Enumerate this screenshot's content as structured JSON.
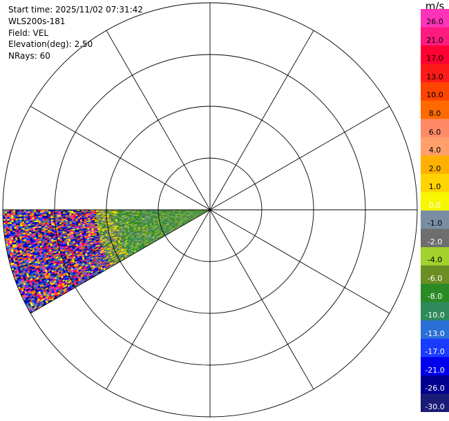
{
  "header": {
    "start_time": "Start time: 2025/11/02 07:31:42",
    "instrument": "WLS200s-181",
    "field": "Field: VEL",
    "elevation": "Elevation(deg): 2.50",
    "nrays": "NRays: 60"
  },
  "chart_data": {
    "type": "heatmap",
    "projection": "polar (PPI)",
    "range_rings": 4,
    "spokes_deg": 30,
    "sector_azimuth_deg": [
      240,
      270
    ],
    "colorbar": {
      "unit": "m/s",
      "ticks": [
        "26.0",
        "21.0",
        "17.0",
        "13.0",
        "10.0",
        "8.0",
        "6.0",
        "4.0",
        "2.0",
        "1.0",
        "0.0",
        "-1.0",
        "-2.0",
        "-4.0",
        "-6.0",
        "-8.0",
        "-10.0",
        "-13.0",
        "-17.0",
        "-21.0",
        "-26.0",
        "-30.0"
      ],
      "colors": [
        "#ff33b8",
        "#ff1a80",
        "#ff0033",
        "#ff1a1a",
        "#ff4400",
        "#ff6a00",
        "#ff8a66",
        "#ff9f6a",
        "#ffb000",
        "#ffd400",
        "#f7f700",
        "#7a8ea3",
        "#6e6e6e",
        "#a3d12e",
        "#6b8f22",
        "#2a8a26",
        "#2e8a5c",
        "#2a6fd6",
        "#1a3cff",
        "#0000ee",
        "#00008f",
        "#1b1b78"
      ]
    }
  }
}
